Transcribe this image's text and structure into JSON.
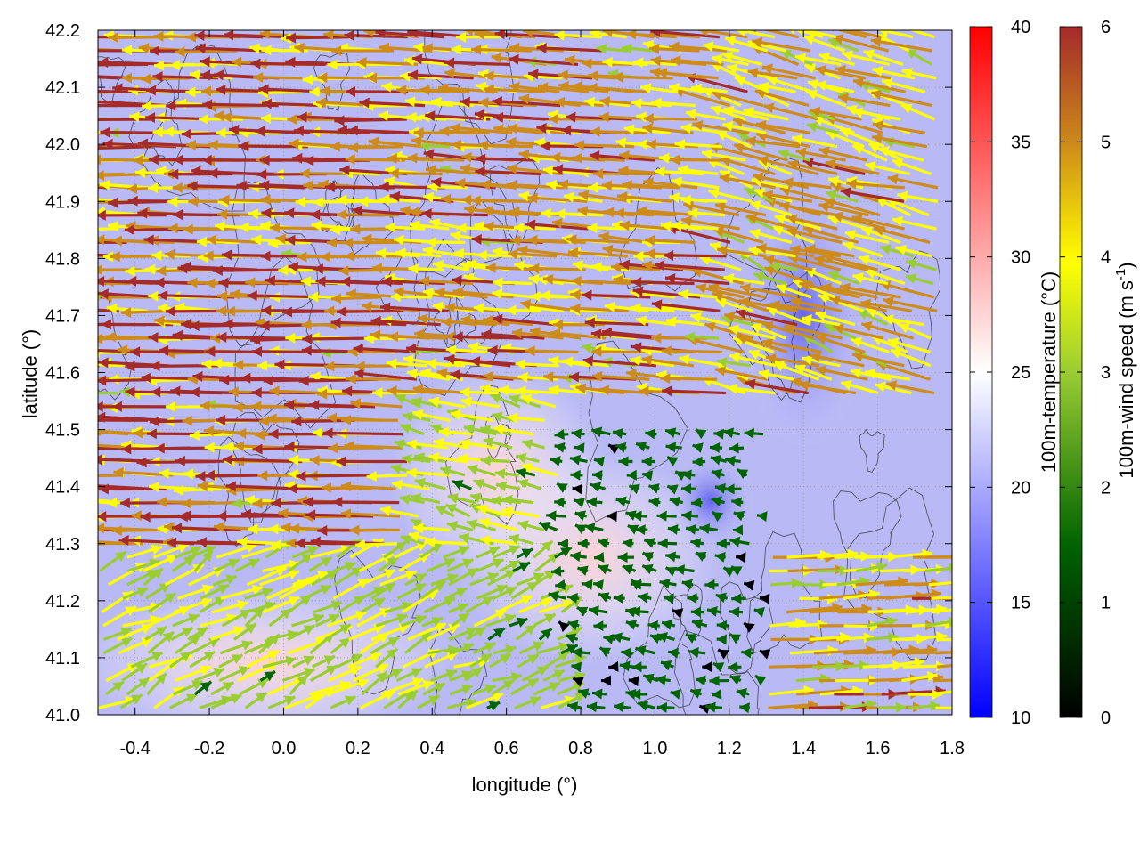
{
  "chart_data": {
    "type": "vector-field",
    "xlabel": "longitude (°)",
    "ylabel": "latitude (°)",
    "xlim": [
      -0.5,
      1.8
    ],
    "ylim": [
      41.0,
      42.2
    ],
    "xticks": [
      -0.4,
      -0.2,
      0.0,
      0.2,
      0.4,
      0.6,
      0.8,
      1.0,
      1.2,
      1.4,
      1.6,
      1.8
    ],
    "xtick_labels": [
      "-0.4",
      "-0.2",
      "0.0",
      "0.2",
      "0.4",
      "0.6",
      "0.8",
      "1.0",
      "1.2",
      "1.4",
      "1.6",
      "1.8"
    ],
    "yticks": [
      41.0,
      41.1,
      41.2,
      41.3,
      41.4,
      41.5,
      41.6,
      41.7,
      41.8,
      41.9,
      42.0,
      42.1,
      42.2
    ],
    "ytick_labels": [
      "41.0",
      "41.1",
      "41.2",
      "41.3",
      "41.4",
      "41.5",
      "41.6",
      "41.7",
      "41.8",
      "41.9",
      "42.0",
      "42.1",
      "42.2"
    ],
    "grid": true,
    "background_field": {
      "name": "100m-temperature",
      "colorbar_label": "100m-temperature (°C)",
      "range": [
        10,
        40
      ],
      "ticks": [
        10,
        15,
        20,
        25,
        30,
        35,
        40
      ],
      "tick_labels": [
        "10",
        "15",
        "20",
        "25",
        "30",
        "35",
        "40"
      ],
      "colormap": [
        "#0000ff",
        "#ffffff",
        "#ff0000"
      ],
      "warm_regions": [
        {
          "lon": [
            -0.45,
            0.35
          ],
          "lat": [
            41.0,
            41.18
          ],
          "level": 27
        },
        {
          "lon": [
            0.35,
            0.8
          ],
          "lat": [
            41.3,
            41.55
          ],
          "level": 25
        },
        {
          "lon": [
            0.55,
            1.1
          ],
          "lat": [
            41.15,
            41.4
          ],
          "level": 25
        }
      ],
      "cool_regions": [
        {
          "lon": [
            1.05,
            1.25
          ],
          "lat": [
            41.3,
            41.45
          ],
          "level": 14
        },
        {
          "lon": [
            1.25,
            1.55
          ],
          "lat": [
            41.5,
            41.9
          ],
          "level": 17
        }
      ]
    },
    "vector_color": {
      "name": "100m-wind speed",
      "colorbar_label": "100m-wind speed (m s",
      "colorbar_label_sup": "-1",
      "colorbar_label_end": ")",
      "range": [
        0,
        6
      ],
      "ticks": [
        0,
        1,
        2,
        3,
        4,
        5,
        6
      ],
      "tick_labels": [
        "0",
        "1",
        "2",
        "3",
        "4",
        "5",
        "6"
      ],
      "colormap": [
        "#000000",
        "#006400",
        "#9acd32",
        "#ffff00",
        "#cd8b1a",
        "#a52a2a"
      ]
    },
    "wind_regions": [
      {
        "lon": [
          -0.5,
          0.35
        ],
        "lat": [
          41.3,
          42.2
        ],
        "u": -5.8,
        "v": 0.1
      },
      {
        "lon": [
          0.35,
          1.2
        ],
        "lat": [
          41.55,
          42.2
        ],
        "u": -5.2,
        "v": 0.35
      },
      {
        "lon": [
          0.35,
          0.75
        ],
        "lat": [
          41.3,
          41.55
        ],
        "u": -3.0,
        "v": 0.6
      },
      {
        "lon": [
          0.75,
          1.3
        ],
        "lat": [
          41.0,
          41.5
        ],
        "u": -1.2,
        "v": 0.2
      },
      {
        "lon": [
          1.2,
          1.8
        ],
        "lat": [
          41.55,
          42.2
        ],
        "u": -4.5,
        "v": 1.0
      },
      {
        "lon": [
          1.2,
          1.8
        ],
        "lat": [
          41.0,
          41.3
        ],
        "u": 4.8,
        "v": 0.2
      },
      {
        "lon": [
          -0.5,
          0.35
        ],
        "lat": [
          41.0,
          41.3
        ],
        "u": 3.0,
        "v": 1.2
      },
      {
        "lon": [
          0.35,
          0.75
        ],
        "lat": [
          41.0,
          41.3
        ],
        "u": 2.5,
        "v": 1.0
      }
    ],
    "contours": "terrain height (unlabeled)"
  }
}
